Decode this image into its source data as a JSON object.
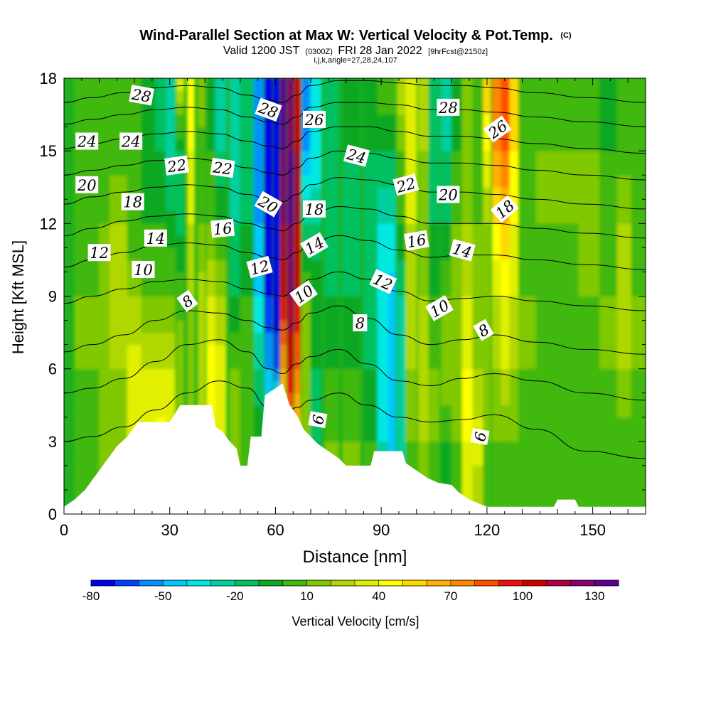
{
  "chart_data": {
    "type": "heatmap",
    "title": "Wind-Parallel Section at Max W: Vertical Velocity & Pot.Temp.",
    "title_tag": "(C)",
    "subtitle_pre": "Valid 1200 JST",
    "subtitle_utc": "(0300Z)",
    "subtitle_date": "FRI 28 Jan 2022",
    "subtitle_fcst": "[9hrFcst@2150z]",
    "subtitle2": "i,j,k,angle=27,28,24,107",
    "xlabel": "Distance [nm]",
    "ylabel": "Height [Kft MSL]",
    "xlim": [
      0,
      165
    ],
    "ylim": [
      0,
      18
    ],
    "xticks": [
      "0",
      "30",
      "60",
      "90",
      "120",
      "150"
    ],
    "yticks": [
      "0",
      "3",
      "6",
      "9",
      "12",
      "15",
      "18"
    ],
    "colorbar": {
      "label": "Vertical Velocity [cm/s]",
      "tick_labels": [
        "-80",
        "-50",
        "-20",
        "10",
        "40",
        "70",
        "100",
        "130"
      ],
      "min": -80,
      "max": 140,
      "step": 10,
      "colors": [
        "#0000ee",
        "#0040ff",
        "#0090ff",
        "#00c8ff",
        "#00e8e0",
        "#00d0a0",
        "#00c060",
        "#10a820",
        "#40b810",
        "#80c800",
        "#b0d800",
        "#e0f000",
        "#ffff00",
        "#ffd800",
        "#ffb000",
        "#ff8800",
        "#ff5000",
        "#ee1010",
        "#cc0000",
        "#b00040",
        "#880070",
        "#600090"
      ]
    },
    "terrain": [
      [
        0,
        0.3
      ],
      [
        3,
        0.6
      ],
      [
        6,
        1.0
      ],
      [
        9,
        1.6
      ],
      [
        12,
        2.2
      ],
      [
        15,
        2.8
      ],
      [
        18,
        3.2
      ],
      [
        21,
        3.8
      ],
      [
        30,
        3.8
      ],
      [
        33,
        4.5
      ],
      [
        42,
        4.5
      ],
      [
        43,
        3.6
      ],
      [
        45,
        3.4
      ],
      [
        47,
        3.0
      ],
      [
        49,
        2.7
      ],
      [
        50,
        2.0
      ],
      [
        52,
        2.0
      ],
      [
        53,
        3.2
      ],
      [
        55,
        3.2
      ],
      [
        56,
        3.2
      ],
      [
        57,
        4.9
      ],
      [
        60,
        5.2
      ],
      [
        62,
        5.4
      ],
      [
        64,
        4.5
      ],
      [
        66,
        4.1
      ],
      [
        68,
        3.5
      ],
      [
        72,
        2.9
      ],
      [
        75,
        2.6
      ],
      [
        78,
        2.3
      ],
      [
        80,
        2.0
      ],
      [
        87,
        2.0
      ],
      [
        88,
        2.6
      ],
      [
        96,
        2.6
      ],
      [
        97,
        2.1
      ],
      [
        100,
        1.8
      ],
      [
        103,
        1.5
      ],
      [
        106,
        1.3
      ],
      [
        110,
        1.2
      ],
      [
        112,
        0.9
      ],
      [
        115,
        0.6
      ],
      [
        120,
        0.3
      ],
      [
        139,
        0.3
      ],
      [
        140,
        0.6
      ],
      [
        145,
        0.6
      ],
      [
        146,
        0.3
      ],
      [
        165,
        0.3
      ]
    ],
    "w_columns": [
      {
        "x": 3,
        "w": 7,
        "vals": [
          5,
          8,
          10,
          10,
          5,
          0,
          0
        ]
      },
      {
        "x": 10,
        "w": 4,
        "vals": [
          10,
          15,
          20,
          18,
          10,
          0,
          0
        ]
      },
      {
        "x": 13,
        "w": 6,
        "vals": [
          5,
          15,
          20,
          25,
          20,
          5,
          0
        ]
      },
      {
        "x": 18,
        "w": 4,
        "vals": [
          10,
          30,
          35,
          20,
          0,
          0,
          5
        ]
      },
      {
        "x": 22,
        "w": 5,
        "vals": [
          25,
          40,
          30,
          10,
          0,
          -10,
          0
        ]
      },
      {
        "x": 26,
        "w": 3,
        "vals": [
          40,
          45,
          30,
          10,
          0,
          -10,
          -15
        ]
      },
      {
        "x": 29,
        "w": 2.5,
        "vals": [
          30,
          40,
          30,
          10,
          -5,
          -30,
          -25
        ]
      },
      {
        "x": 32,
        "w": 2,
        "vals": [
          10,
          15,
          20,
          5,
          -15,
          -10,
          35
        ]
      },
      {
        "x": 35,
        "w": 2,
        "vals": [
          15,
          20,
          10,
          20,
          30,
          40,
          45
        ]
      },
      {
        "x": 38,
        "w": 2,
        "vals": [
          0,
          20,
          30,
          25,
          10,
          5,
          20
        ]
      },
      {
        "x": 40.5,
        "w": 2.5,
        "vals": [
          30,
          40,
          45,
          30,
          10,
          0,
          -10
        ]
      },
      {
        "x": 43,
        "w": 3,
        "vals": [
          30,
          40,
          35,
          20,
          0,
          -20,
          -30
        ]
      },
      {
        "x": 47,
        "w": 3,
        "vals": [
          10,
          15,
          10,
          -10,
          -20,
          -25,
          -25
        ]
      },
      {
        "x": 50,
        "w": 4,
        "vals": [
          0,
          5,
          10,
          0,
          -10,
          -20,
          -20
        ]
      },
      {
        "x": 54,
        "w": 2.5,
        "vals": [
          0,
          0,
          -20,
          -40,
          -50,
          -55,
          -50
        ]
      },
      {
        "x": 57,
        "w": 2,
        "vals": [
          -10,
          -20,
          -50,
          -70,
          -80,
          -80,
          -70
        ]
      },
      {
        "x": 59.5,
        "w": 1.5,
        "vals": [
          0,
          -10,
          -60,
          -80,
          -80,
          -80,
          -80
        ]
      },
      {
        "x": 61.5,
        "w": 1.5,
        "vals": [
          20,
          40,
          70,
          100,
          120,
          130,
          130
        ]
      },
      {
        "x": 63.5,
        "w": 1.5,
        "vals": [
          30,
          60,
          100,
          120,
          130,
          130,
          120
        ]
      },
      {
        "x": 65.5,
        "w": 1.5,
        "vals": [
          20,
          50,
          80,
          100,
          110,
          110,
          100
        ]
      },
      {
        "x": 67.5,
        "w": 2.5,
        "vals": [
          0,
          10,
          20,
          10,
          -20,
          -50,
          -60
        ]
      },
      {
        "x": 70,
        "w": 3,
        "vals": [
          -10,
          -20,
          -10,
          0,
          -20,
          -40,
          -40
        ]
      },
      {
        "x": 74,
        "w": 4,
        "vals": [
          10,
          10,
          0,
          -10,
          -15,
          -20,
          -20
        ]
      },
      {
        "x": 79,
        "w": 5,
        "vals": [
          10,
          10,
          0,
          -10,
          -20,
          -10,
          -10
        ]
      },
      {
        "x": 85,
        "w": 4,
        "vals": [
          0,
          0,
          -10,
          -20,
          -20,
          -10,
          0
        ]
      },
      {
        "x": 89,
        "w": 3,
        "vals": [
          -20,
          -30,
          -35,
          -40,
          -30,
          -10,
          10
        ]
      },
      {
        "x": 92,
        "w": 2,
        "vals": [
          -40,
          -50,
          -50,
          -45,
          -30,
          -10,
          10
        ]
      },
      {
        "x": 94.5,
        "w": 2.5,
        "vals": [
          -20,
          -30,
          -30,
          -20,
          0,
          10,
          30
        ]
      },
      {
        "x": 97,
        "w": 3,
        "vals": [
          0,
          10,
          20,
          20,
          30,
          30,
          40
        ]
      },
      {
        "x": 100.5,
        "w": 3,
        "vals": [
          10,
          20,
          30,
          20,
          10,
          20,
          30
        ]
      },
      {
        "x": 103.5,
        "w": 3,
        "vals": [
          0,
          10,
          10,
          0,
          -10,
          -20,
          -10
        ]
      },
      {
        "x": 107,
        "w": 3,
        "vals": [
          -10,
          0,
          20,
          10,
          -10,
          -20,
          -30
        ]
      },
      {
        "x": 110,
        "w": 3,
        "vals": [
          5,
          10,
          20,
          10,
          10,
          0,
          -10
        ]
      },
      {
        "x": 113,
        "w": 3,
        "vals": [
          30,
          40,
          40,
          30,
          20,
          10,
          10
        ]
      },
      {
        "x": 116,
        "w": 3,
        "vals": [
          20,
          35,
          20,
          15,
          10,
          0,
          0
        ]
      },
      {
        "x": 119,
        "w": 2,
        "vals": [
          0,
          10,
          10,
          15,
          20,
          40,
          60
        ]
      },
      {
        "x": 121.5,
        "w": 2.5,
        "vals": [
          0,
          10,
          20,
          30,
          50,
          70,
          80
        ]
      },
      {
        "x": 124,
        "w": 2.5,
        "vals": [
          5,
          10,
          30,
          40,
          60,
          80,
          80
        ]
      },
      {
        "x": 126.5,
        "w": 2.5,
        "vals": [
          5,
          10,
          20,
          30,
          40,
          50,
          50
        ]
      },
      {
        "x": 129,
        "w": 5,
        "vals": [
          0,
          0,
          10,
          10,
          0,
          0,
          0
        ]
      },
      {
        "x": 134,
        "w": 6,
        "vals": [
          0,
          0,
          0,
          5,
          10,
          10,
          5
        ]
      },
      {
        "x": 140,
        "w": 6,
        "vals": [
          0,
          0,
          0,
          0,
          10,
          10,
          5
        ]
      },
      {
        "x": 146,
        "w": 6,
        "vals": [
          0,
          0,
          5,
          10,
          10,
          10,
          5
        ]
      },
      {
        "x": 152,
        "w": 5,
        "vals": [
          0,
          5,
          10,
          10,
          5,
          0,
          -5
        ]
      },
      {
        "x": 157,
        "w": 4,
        "vals": [
          0,
          5,
          20,
          25,
          20,
          5,
          0
        ]
      },
      {
        "x": 161,
        "w": 4,
        "vals": [
          0,
          0,
          10,
          10,
          0,
          0,
          0
        ]
      }
    ],
    "w_levels": [
      0,
      3,
      6,
      9,
      12,
      15,
      18
    ],
    "theta_lines": [
      {
        "y": [
          3.0,
          3.2,
          3.6,
          4.3,
          5.0,
          5.5,
          5.2,
          4.4,
          4.0,
          4.4,
          4.7,
          5.0,
          4.5,
          4.0,
          3.8,
          3.9,
          4.1,
          3.5,
          2.6,
          2.3
        ]
      },
      {
        "y": [
          5.0,
          5.2,
          5.6,
          6.3,
          7.0,
          7.2,
          6.7,
          6.0,
          5.8,
          6.2,
          6.5,
          6.8,
          6.2,
          5.5,
          5.3,
          5.6,
          5.8,
          5.5,
          5.0,
          4.7
        ]
      },
      {
        "y": [
          6.7,
          7.0,
          7.4,
          8.0,
          8.4,
          8.3,
          8.0,
          7.7,
          7.6,
          7.9,
          8.3,
          8.6,
          8.1,
          7.4,
          7.0,
          7.2,
          7.4,
          7.1,
          6.8,
          6.6
        ]
      },
      {
        "y": [
          8.7,
          9.0,
          9.3,
          9.6,
          9.7,
          9.6,
          9.3,
          9.1,
          9.0,
          9.3,
          9.7,
          10.0,
          9.7,
          9.2,
          8.8,
          8.9,
          9.0,
          8.8,
          8.6,
          8.4
        ]
      },
      {
        "y": [
          10.2,
          10.5,
          10.8,
          11.1,
          11.2,
          11.1,
          10.8,
          10.6,
          10.5,
          10.8,
          11.2,
          11.5,
          11.3,
          10.9,
          10.6,
          10.7,
          10.7,
          10.5,
          10.3,
          10.1
        ]
      },
      {
        "y": [
          11.5,
          11.8,
          12.1,
          12.3,
          12.4,
          12.3,
          12.0,
          11.8,
          11.7,
          12.0,
          12.4,
          12.7,
          12.6,
          12.3,
          12.0,
          12.0,
          12.0,
          11.8,
          11.6,
          11.4
        ]
      },
      {
        "y": [
          12.8,
          13.1,
          13.3,
          13.5,
          13.6,
          13.5,
          13.2,
          13.0,
          12.9,
          13.2,
          13.6,
          13.9,
          13.8,
          13.6,
          13.3,
          13.3,
          13.2,
          13.0,
          12.8,
          12.6
        ]
      },
      {
        "y": [
          14.0,
          14.2,
          14.4,
          14.6,
          14.7,
          14.6,
          14.3,
          14.1,
          14.0,
          14.3,
          14.7,
          15.0,
          14.9,
          14.7,
          14.5,
          14.5,
          14.4,
          14.2,
          14.0,
          13.8
        ]
      },
      {
        "y": [
          15.1,
          15.3,
          15.5,
          15.7,
          15.8,
          15.7,
          15.4,
          15.2,
          15.1,
          15.4,
          15.8,
          16.0,
          16.0,
          15.8,
          15.6,
          15.6,
          15.5,
          15.3,
          15.1,
          14.9
        ]
      },
      {
        "y": [
          16.1,
          16.3,
          16.5,
          16.7,
          16.8,
          16.7,
          16.4,
          16.2,
          16.1,
          16.4,
          16.8,
          17.0,
          17.0,
          16.9,
          16.7,
          16.7,
          16.6,
          16.4,
          16.2,
          16.0
        ]
      },
      {
        "y": [
          17.0,
          17.2,
          17.4,
          17.6,
          17.7,
          17.6,
          17.3,
          17.1,
          17.0,
          17.3,
          17.7,
          17.9,
          17.9,
          17.8,
          17.7,
          17.7,
          17.6,
          17.4,
          17.2,
          17.0
        ]
      }
    ],
    "theta_x": [
      0,
      8,
      17,
      26,
      35,
      44,
      52,
      58,
      62,
      66,
      70,
      78,
      86,
      95,
      104,
      113,
      122,
      134,
      148,
      165
    ],
    "contour_labels": [
      {
        "text": "28",
        "x": 22,
        "y": 17.3,
        "rot": 10
      },
      {
        "text": "24",
        "x": 6.5,
        "y": 15.4,
        "rot": 0
      },
      {
        "text": "24",
        "x": 19,
        "y": 15.4,
        "rot": 0
      },
      {
        "text": "20",
        "x": 6.5,
        "y": 13.6,
        "rot": 0
      },
      {
        "text": "22",
        "x": 32,
        "y": 14.4,
        "rot": -8
      },
      {
        "text": "22",
        "x": 45,
        "y": 14.3,
        "rot": 8
      },
      {
        "text": "18",
        "x": 19.5,
        "y": 12.9,
        "rot": 0
      },
      {
        "text": "14",
        "x": 26,
        "y": 11.4,
        "rot": 0
      },
      {
        "text": "12",
        "x": 10,
        "y": 10.8,
        "rot": 0
      },
      {
        "text": "10",
        "x": 22.5,
        "y": 10.1,
        "rot": 0
      },
      {
        "text": "16",
        "x": 45,
        "y": 11.8,
        "rot": -5
      },
      {
        "text": "8",
        "x": 35,
        "y": 8.8,
        "rot": -35
      },
      {
        "text": "28",
        "x": 58,
        "y": 16.7,
        "rot": 20
      },
      {
        "text": "26",
        "x": 71,
        "y": 16.3,
        "rot": 0
      },
      {
        "text": "20",
        "x": 58,
        "y": 12.8,
        "rot": 30
      },
      {
        "text": "18",
        "x": 71,
        "y": 12.6,
        "rot": 0
      },
      {
        "text": "14",
        "x": 71,
        "y": 11.1,
        "rot": -30
      },
      {
        "text": "12",
        "x": 55.5,
        "y": 10.2,
        "rot": -15
      },
      {
        "text": "10",
        "x": 68,
        "y": 9.1,
        "rot": -35
      },
      {
        "text": "24",
        "x": 83,
        "y": 14.8,
        "rot": 15
      },
      {
        "text": "8",
        "x": 84,
        "y": 7.9,
        "rot": 0
      },
      {
        "text": "6",
        "x": 72,
        "y": 3.9,
        "rot": -80
      },
      {
        "text": "22",
        "x": 97,
        "y": 13.6,
        "rot": -15
      },
      {
        "text": "16",
        "x": 100,
        "y": 11.3,
        "rot": -10
      },
      {
        "text": "12",
        "x": 90.5,
        "y": 9.6,
        "rot": 25
      },
      {
        "text": "28",
        "x": 109,
        "y": 16.8,
        "rot": 0
      },
      {
        "text": "20",
        "x": 109,
        "y": 13.2,
        "rot": 0
      },
      {
        "text": "14",
        "x": 113,
        "y": 10.9,
        "rot": 15
      },
      {
        "text": "10",
        "x": 106.5,
        "y": 8.5,
        "rot": -30
      },
      {
        "text": "26",
        "x": 123,
        "y": 15.9,
        "rot": -35
      },
      {
        "text": "18",
        "x": 125,
        "y": 12.6,
        "rot": -40
      },
      {
        "text": "8",
        "x": 119,
        "y": 7.6,
        "rot": -30
      },
      {
        "text": "6",
        "x": 118,
        "y": 3.2,
        "rot": -80
      }
    ]
  }
}
